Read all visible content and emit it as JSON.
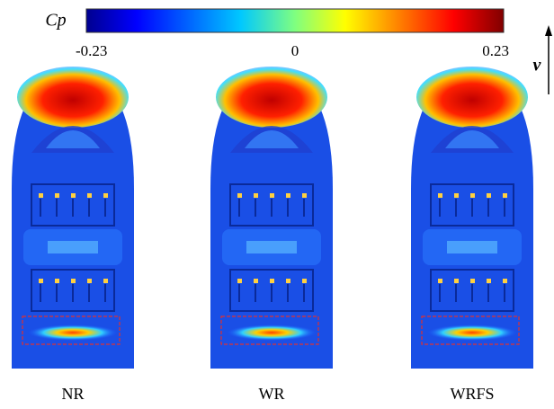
{
  "colorbar": {
    "label": "Cp",
    "ticks": [
      -0.23,
      0,
      0.23
    ]
  },
  "flow_label": "v",
  "panels": [
    {
      "label": "NR"
    },
    {
      "label": "WR"
    },
    {
      "label": "WRFS"
    }
  ]
}
